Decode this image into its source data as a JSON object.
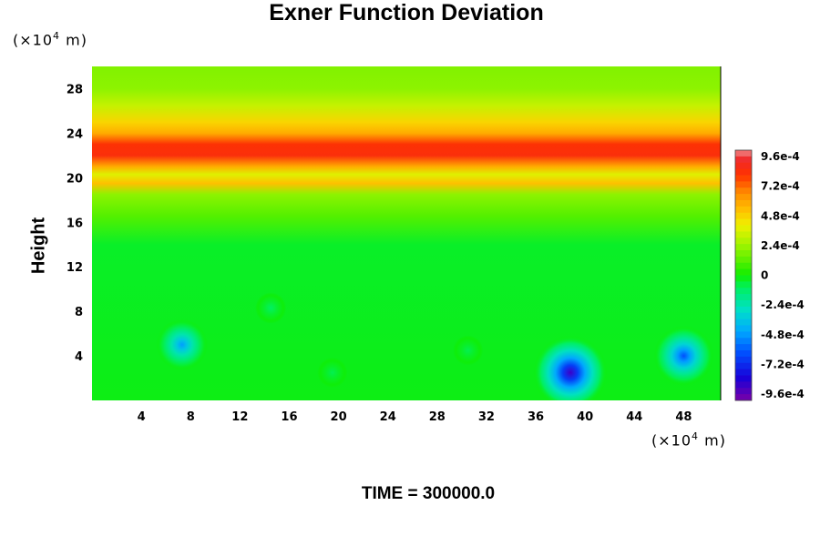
{
  "chart_data": {
    "type": "heatmap",
    "title": "Exner Function Deviation",
    "ylabel": "Height",
    "x_unit_prefix": "(×10",
    "x_unit_exp": "4",
    "x_unit_suffix": " m)",
    "y_unit_prefix": "(×10",
    "y_unit_exp": "4",
    "y_unit_suffix": " m)",
    "footer": "TIME = 300000.0",
    "xlim": [
      0,
      51
    ],
    "ylim": [
      0,
      30
    ],
    "x_ticks": [
      "4",
      "8",
      "12",
      "16",
      "20",
      "24",
      "28",
      "32",
      "36",
      "40",
      "44",
      "48"
    ],
    "y_ticks": [
      "4",
      "8",
      "12",
      "16",
      "20",
      "24",
      "28"
    ],
    "colorbar": {
      "min": -0.00096,
      "max": 0.00096,
      "labels": [
        "9.6e-4",
        "7.2e-4",
        "4.8e-4",
        "2.4e-4",
        "0",
        "-2.4e-4",
        "-4.8e-4",
        "-7.2e-4",
        "-9.6e-4"
      ]
    },
    "background_field": [
      {
        "height": 0,
        "value": -2e-05
      },
      {
        "height": 14,
        "value": -4e-05
      },
      {
        "height": 16.5,
        "value": 0.0001
      },
      {
        "height": 18.5,
        "value": 0.0002
      },
      {
        "height": 19.5,
        "value": 0.0005
      },
      {
        "height": 20.3,
        "value": 0.00035
      },
      {
        "height": 21,
        "value": 0.00055
      },
      {
        "height": 22,
        "value": 0.0008
      },
      {
        "height": 23,
        "value": 0.00078
      },
      {
        "height": 24,
        "value": 0.00055
      },
      {
        "height": 25,
        "value": 0.00045
      },
      {
        "height": 26.5,
        "value": 0.0003
      },
      {
        "height": 28,
        "value": 0.0002
      },
      {
        "height": 30,
        "value": 0.00018
      }
    ],
    "anomalies": [
      {
        "x": 7.3,
        "y": 5.0,
        "value": -0.00045
      },
      {
        "x": 38.8,
        "y": 2.5,
        "value": -0.00085
      },
      {
        "x": 48.0,
        "y": 4.0,
        "value": -0.0006
      },
      {
        "x": 14.5,
        "y": 8.3,
        "value": -0.0001
      },
      {
        "x": 30.5,
        "y": 4.5,
        "value": -8e-05
      },
      {
        "x": 19.5,
        "y": 2.5,
        "value": -8e-05
      }
    ]
  }
}
